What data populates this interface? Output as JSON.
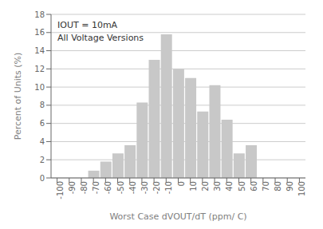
{
  "chart_data": {
    "type": "bar",
    "x": [
      -100,
      -90,
      -80,
      -70,
      -60,
      -50,
      -40,
      -30,
      -20,
      -10,
      0,
      10,
      20,
      30,
      40,
      50,
      60,
      70,
      80,
      90,
      100
    ],
    "values": [
      0,
      0,
      0,
      0.8,
      1.8,
      2.7,
      3.6,
      8.3,
      13.0,
      15.8,
      12.0,
      11.0,
      7.3,
      10.2,
      6.4,
      2.7,
      3.6,
      0,
      0,
      0,
      0
    ],
    "color": "#c8c8c8",
    "xlim": [
      -105,
      105
    ],
    "xticks": [
      -100,
      -90,
      -80,
      -70,
      -60,
      -50,
      -40,
      -30,
      -20,
      -10,
      0,
      10,
      20,
      30,
      40,
      50,
      60,
      70,
      80,
      90,
      100
    ],
    "ylim": [
      0,
      18
    ],
    "yticks": [
      0,
      2,
      4,
      6,
      8,
      10,
      12,
      14,
      16,
      18
    ],
    "xlabel": "Worst Case dVOUT/dT (ppm/  C)",
    "ylabel": "Percent of Units (%)",
    "annotations": [
      "IOUT = 10mA",
      "All Voltage Versions"
    ],
    "grid": true
  }
}
